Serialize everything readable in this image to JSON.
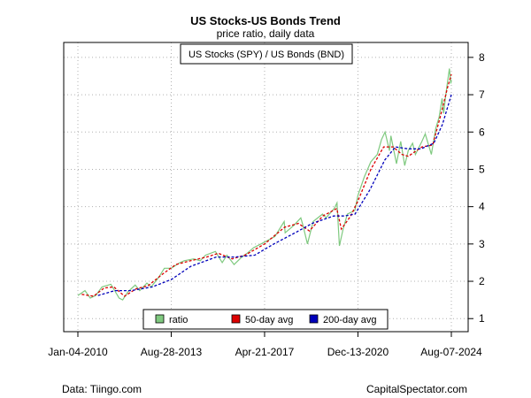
{
  "chart_data": {
    "type": "line",
    "title": "US Stocks-US Bonds Trend",
    "subtitle": "price ratio, daily data",
    "inner_label": "US Stocks (SPY) / US Bonds (BND)",
    "x_start": "2010-01-04",
    "x_end": "2024-08-07",
    "x_ticks": [
      {
        "label": "Jan-04-2010",
        "date": "2010-01-04"
      },
      {
        "label": "Aug-28-2013",
        "date": "2013-08-28"
      },
      {
        "label": "Apr-21-2017",
        "date": "2017-04-21"
      },
      {
        "label": "Dec-13-2020",
        "date": "2020-12-13"
      },
      {
        "label": "Aug-07-2024",
        "date": "2024-08-07"
      }
    ],
    "y_ticks": [
      1,
      2,
      3,
      4,
      5,
      6,
      7,
      8
    ],
    "ylim": [
      0.65,
      8.4
    ],
    "grid": true,
    "legend_position": "bottom-center",
    "series": [
      {
        "name": "ratio",
        "color": "#7fc97f",
        "style": "solid",
        "points": [
          [
            "2010-01-04",
            1.62
          ],
          [
            "2010-04-15",
            1.75
          ],
          [
            "2010-06-30",
            1.55
          ],
          [
            "2010-09-15",
            1.62
          ],
          [
            "2010-12-15",
            1.85
          ],
          [
            "2011-04-20",
            1.92
          ],
          [
            "2011-08-15",
            1.55
          ],
          [
            "2011-10-05",
            1.5
          ],
          [
            "2011-12-20",
            1.72
          ],
          [
            "2012-04-01",
            1.9
          ],
          [
            "2012-06-05",
            1.75
          ],
          [
            "2012-09-15",
            1.95
          ],
          [
            "2012-11-15",
            1.85
          ],
          [
            "2013-03-01",
            2.1
          ],
          [
            "2013-05-22",
            2.35
          ],
          [
            "2013-08-28",
            2.35
          ],
          [
            "2013-12-31",
            2.5
          ],
          [
            "2014-03-01",
            2.55
          ],
          [
            "2014-07-15",
            2.6
          ],
          [
            "2014-10-15",
            2.55
          ],
          [
            "2014-12-31",
            2.7
          ],
          [
            "2015-05-20",
            2.8
          ],
          [
            "2015-08-25",
            2.5
          ],
          [
            "2015-11-01",
            2.7
          ],
          [
            "2016-02-11",
            2.45
          ],
          [
            "2016-06-01",
            2.65
          ],
          [
            "2016-08-15",
            2.75
          ],
          [
            "2016-11-15",
            2.9
          ],
          [
            "2017-04-21",
            3.05
          ],
          [
            "2017-09-15",
            3.2
          ],
          [
            "2018-01-26",
            3.6
          ],
          [
            "2018-02-08",
            3.3
          ],
          [
            "2018-06-15",
            3.5
          ],
          [
            "2018-09-20",
            3.7
          ],
          [
            "2018-10-20",
            3.5
          ],
          [
            "2018-12-24",
            3.0
          ],
          [
            "2019-03-15",
            3.6
          ],
          [
            "2019-07-26",
            3.8
          ],
          [
            "2019-09-15",
            3.7
          ],
          [
            "2020-01-10",
            3.95
          ],
          [
            "2020-02-19",
            4.1
          ],
          [
            "2020-03-23",
            2.95
          ],
          [
            "2020-05-15",
            3.4
          ],
          [
            "2020-07-15",
            3.8
          ],
          [
            "2020-10-30",
            3.9
          ],
          [
            "2020-12-13",
            4.3
          ],
          [
            "2021-03-15",
            4.8
          ],
          [
            "2021-06-15",
            5.2
          ],
          [
            "2021-09-15",
            5.4
          ],
          [
            "2021-11-15",
            5.8
          ],
          [
            "2022-01-04",
            6.0
          ],
          [
            "2022-03-08",
            5.5
          ],
          [
            "2022-03-29",
            5.9
          ],
          [
            "2022-06-16",
            5.15
          ],
          [
            "2022-08-16",
            5.75
          ],
          [
            "2022-10-12",
            5.1
          ],
          [
            "2022-12-01",
            5.5
          ],
          [
            "2023-02-01",
            5.7
          ],
          [
            "2023-03-13",
            5.4
          ],
          [
            "2023-06-15",
            5.75
          ],
          [
            "2023-07-31",
            5.95
          ],
          [
            "2023-10-27",
            5.4
          ],
          [
            "2023-12-29",
            6.1
          ],
          [
            "2024-02-15",
            6.4
          ],
          [
            "2024-03-28",
            6.9
          ],
          [
            "2024-04-19",
            6.5
          ],
          [
            "2024-05-20",
            7.0
          ],
          [
            "2024-07-10",
            7.7
          ],
          [
            "2024-07-30",
            7.3
          ],
          [
            "2024-08-07",
            7.4
          ]
        ]
      },
      {
        "name": "50-day avg",
        "color": "#dd0000",
        "style": "dashed",
        "points": [
          [
            "2010-03-01",
            1.65
          ],
          [
            "2010-08-15",
            1.6
          ],
          [
            "2011-01-15",
            1.82
          ],
          [
            "2011-06-01",
            1.85
          ],
          [
            "2011-11-01",
            1.6
          ],
          [
            "2012-04-15",
            1.8
          ],
          [
            "2012-10-01",
            1.88
          ],
          [
            "2013-05-01",
            2.2
          ],
          [
            "2013-11-01",
            2.45
          ],
          [
            "2014-06-01",
            2.55
          ],
          [
            "2015-01-15",
            2.65
          ],
          [
            "2015-07-01",
            2.75
          ],
          [
            "2016-01-15",
            2.6
          ],
          [
            "2016-07-15",
            2.7
          ],
          [
            "2017-04-21",
            3.0
          ],
          [
            "2018-02-01",
            3.45
          ],
          [
            "2018-08-15",
            3.55
          ],
          [
            "2019-01-20",
            3.35
          ],
          [
            "2019-08-01",
            3.75
          ],
          [
            "2020-02-15",
            3.95
          ],
          [
            "2020-04-20",
            3.4
          ],
          [
            "2020-09-01",
            3.75
          ],
          [
            "2020-12-13",
            4.15
          ],
          [
            "2021-06-15",
            5.0
          ],
          [
            "2021-12-15",
            5.6
          ],
          [
            "2022-05-01",
            5.6
          ],
          [
            "2022-09-01",
            5.4
          ],
          [
            "2022-12-01",
            5.35
          ],
          [
            "2023-06-15",
            5.6
          ],
          [
            "2023-11-15",
            5.65
          ],
          [
            "2024-03-01",
            6.4
          ],
          [
            "2024-06-15",
            7.2
          ],
          [
            "2024-08-07",
            7.55
          ]
        ]
      },
      {
        "name": "200-day avg",
        "color": "#0000bb",
        "style": "dashed",
        "points": [
          [
            "2010-10-18",
            1.62
          ],
          [
            "2011-06-15",
            1.75
          ],
          [
            "2012-02-01",
            1.75
          ],
          [
            "2012-12-01",
            1.85
          ],
          [
            "2013-09-01",
            2.05
          ],
          [
            "2014-06-01",
            2.4
          ],
          [
            "2015-06-01",
            2.65
          ],
          [
            "2016-03-01",
            2.65
          ],
          [
            "2016-12-01",
            2.7
          ],
          [
            "2017-09-01",
            3.0
          ],
          [
            "2018-07-01",
            3.3
          ],
          [
            "2019-03-01",
            3.55
          ],
          [
            "2020-01-01",
            3.75
          ],
          [
            "2020-06-01",
            3.75
          ],
          [
            "2020-11-01",
            3.8
          ],
          [
            "2021-06-01",
            4.45
          ],
          [
            "2022-01-01",
            5.25
          ],
          [
            "2022-06-01",
            5.6
          ],
          [
            "2022-12-01",
            5.55
          ],
          [
            "2023-06-01",
            5.55
          ],
          [
            "2023-12-01",
            5.7
          ],
          [
            "2024-04-01",
            6.2
          ],
          [
            "2024-08-07",
            7.0
          ]
        ]
      }
    ]
  },
  "footer": {
    "left": "Data: Tiingo.com",
    "right": "CapitalSpectator.com"
  }
}
